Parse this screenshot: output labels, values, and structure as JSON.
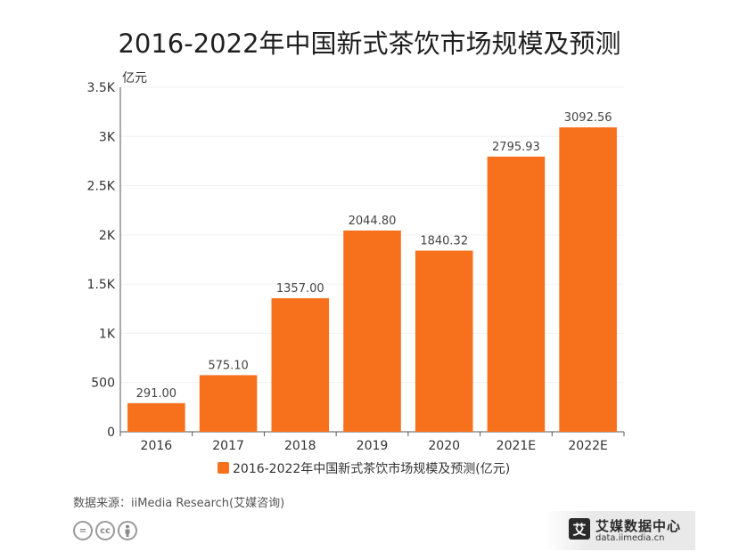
{
  "colors": {
    "bar": "#f7701c",
    "axis": "#333333",
    "grid": "#f0f0f0",
    "label": "#444444"
  },
  "chart_data": {
    "type": "bar",
    "title": "2016-2022年中国新式茶饮市场规模及预测",
    "ylabel": "亿元",
    "xlabel": "",
    "categories": [
      "2016",
      "2017",
      "2018",
      "2019",
      "2020",
      "2021E",
      "2022E"
    ],
    "series": [
      {
        "name": "2016-2022年中国新式茶饮市场规模及预测(亿元)",
        "values": [
          291.0,
          575.1,
          1357.0,
          2044.8,
          1840.32,
          2795.93,
          3092.56
        ]
      }
    ],
    "data_labels": [
      "291.00",
      "575.10",
      "1357.00",
      "2044.80",
      "1840.32",
      "2795.93",
      "3092.56"
    ],
    "ylim": [
      0,
      3500
    ],
    "yticks": [
      0,
      500,
      1000,
      1500,
      2000,
      2500,
      3000,
      3500
    ],
    "ytick_labels": [
      "0",
      "500",
      "1K",
      "1.5K",
      "2K",
      "2.5K",
      "3K",
      "3.5K"
    ],
    "grid": true,
    "legend_position": "bottom"
  },
  "footer": {
    "source": "数据来源：iiMedia Research(艾媒咨询)",
    "license_icons": [
      "equal-icon",
      "cc-icon",
      "person-icon"
    ],
    "brand_logo": "艾",
    "brand_name": "艾媒数据中心",
    "brand_url": "data.iimedia.cn"
  }
}
